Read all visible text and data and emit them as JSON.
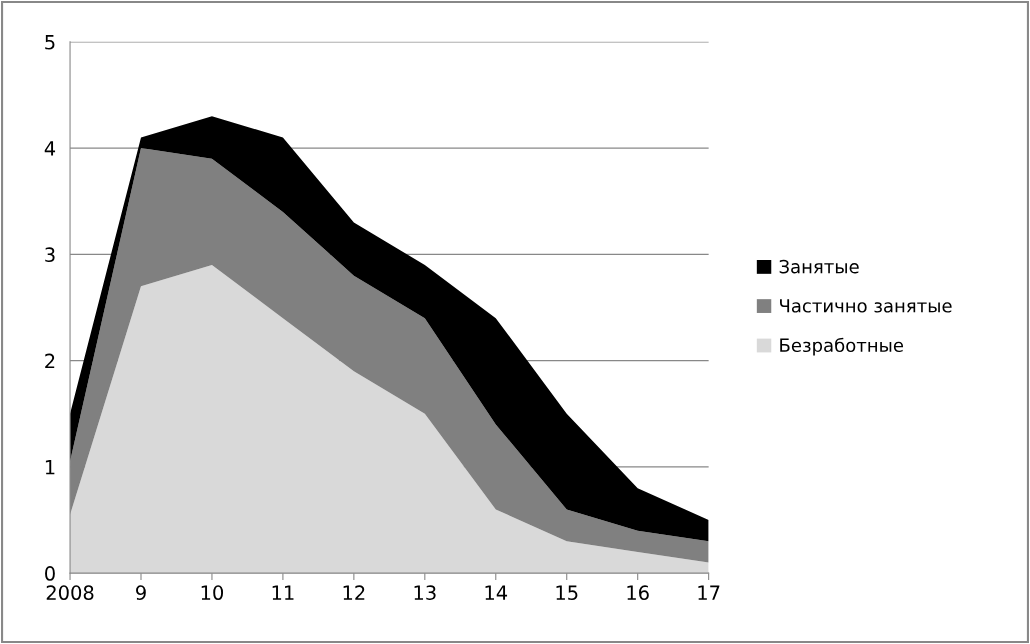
{
  "chart_data": {
    "type": "area",
    "stacked": true,
    "categories": [
      "2008",
      "9",
      "10",
      "11",
      "12",
      "13",
      "14",
      "15",
      "16",
      "17"
    ],
    "series": [
      {
        "name": "Безработные",
        "color": "#d9d9d9",
        "values": [
          0.55,
          2.7,
          2.9,
          2.4,
          1.9,
          1.5,
          0.6,
          0.3,
          0.2,
          0.1
        ]
      },
      {
        "name": "Частично занятые",
        "color": "#808080",
        "values": [
          0.5,
          1.3,
          1.0,
          1.0,
          0.9,
          0.9,
          0.8,
          0.3,
          0.2,
          0.2
        ]
      },
      {
        "name": "Занятые",
        "color": "#000000",
        "values": [
          0.45,
          0.1,
          0.4,
          0.7,
          0.5,
          0.5,
          1.0,
          0.9,
          0.4,
          0.2
        ]
      }
    ],
    "ylim": [
      0,
      5
    ],
    "yticks": [
      0,
      1,
      2,
      3,
      4,
      5
    ],
    "grid": "y",
    "legend": "right"
  }
}
